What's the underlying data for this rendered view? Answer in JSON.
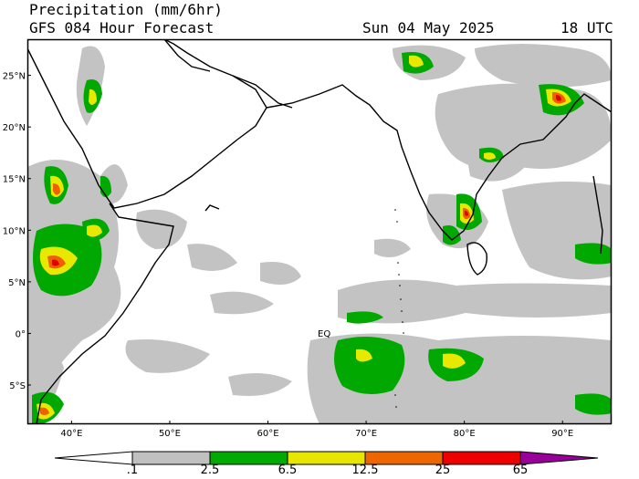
{
  "header": {
    "line1": "Precipitation (mm/6hr)",
    "model": "GFS 084 Hour Forecast",
    "date": "Sun 04 May 2025",
    "time": "18 UTC"
  },
  "map": {
    "lat_labels": [
      "25°N",
      "20°N",
      "15°N",
      "10°N",
      "5°N",
      "0°",
      "5°S"
    ],
    "lon_labels": [
      "40°E",
      "50°E",
      "60°E",
      "70°E",
      "80°E",
      "90°E"
    ],
    "equator_label": "EQ",
    "lon_range": [
      35.5,
      95
    ],
    "lat_range": [
      -8.8,
      28.5
    ]
  },
  "colorbar": {
    "labels": [
      ".1",
      "2.5",
      "6.5",
      "12.5",
      "25",
      "65"
    ],
    "colors": [
      "#ffffff",
      "#c0c0c0",
      "#00aa00",
      "#e6e600",
      "#ee6600",
      "#ee0000",
      "#990099"
    ]
  }
}
